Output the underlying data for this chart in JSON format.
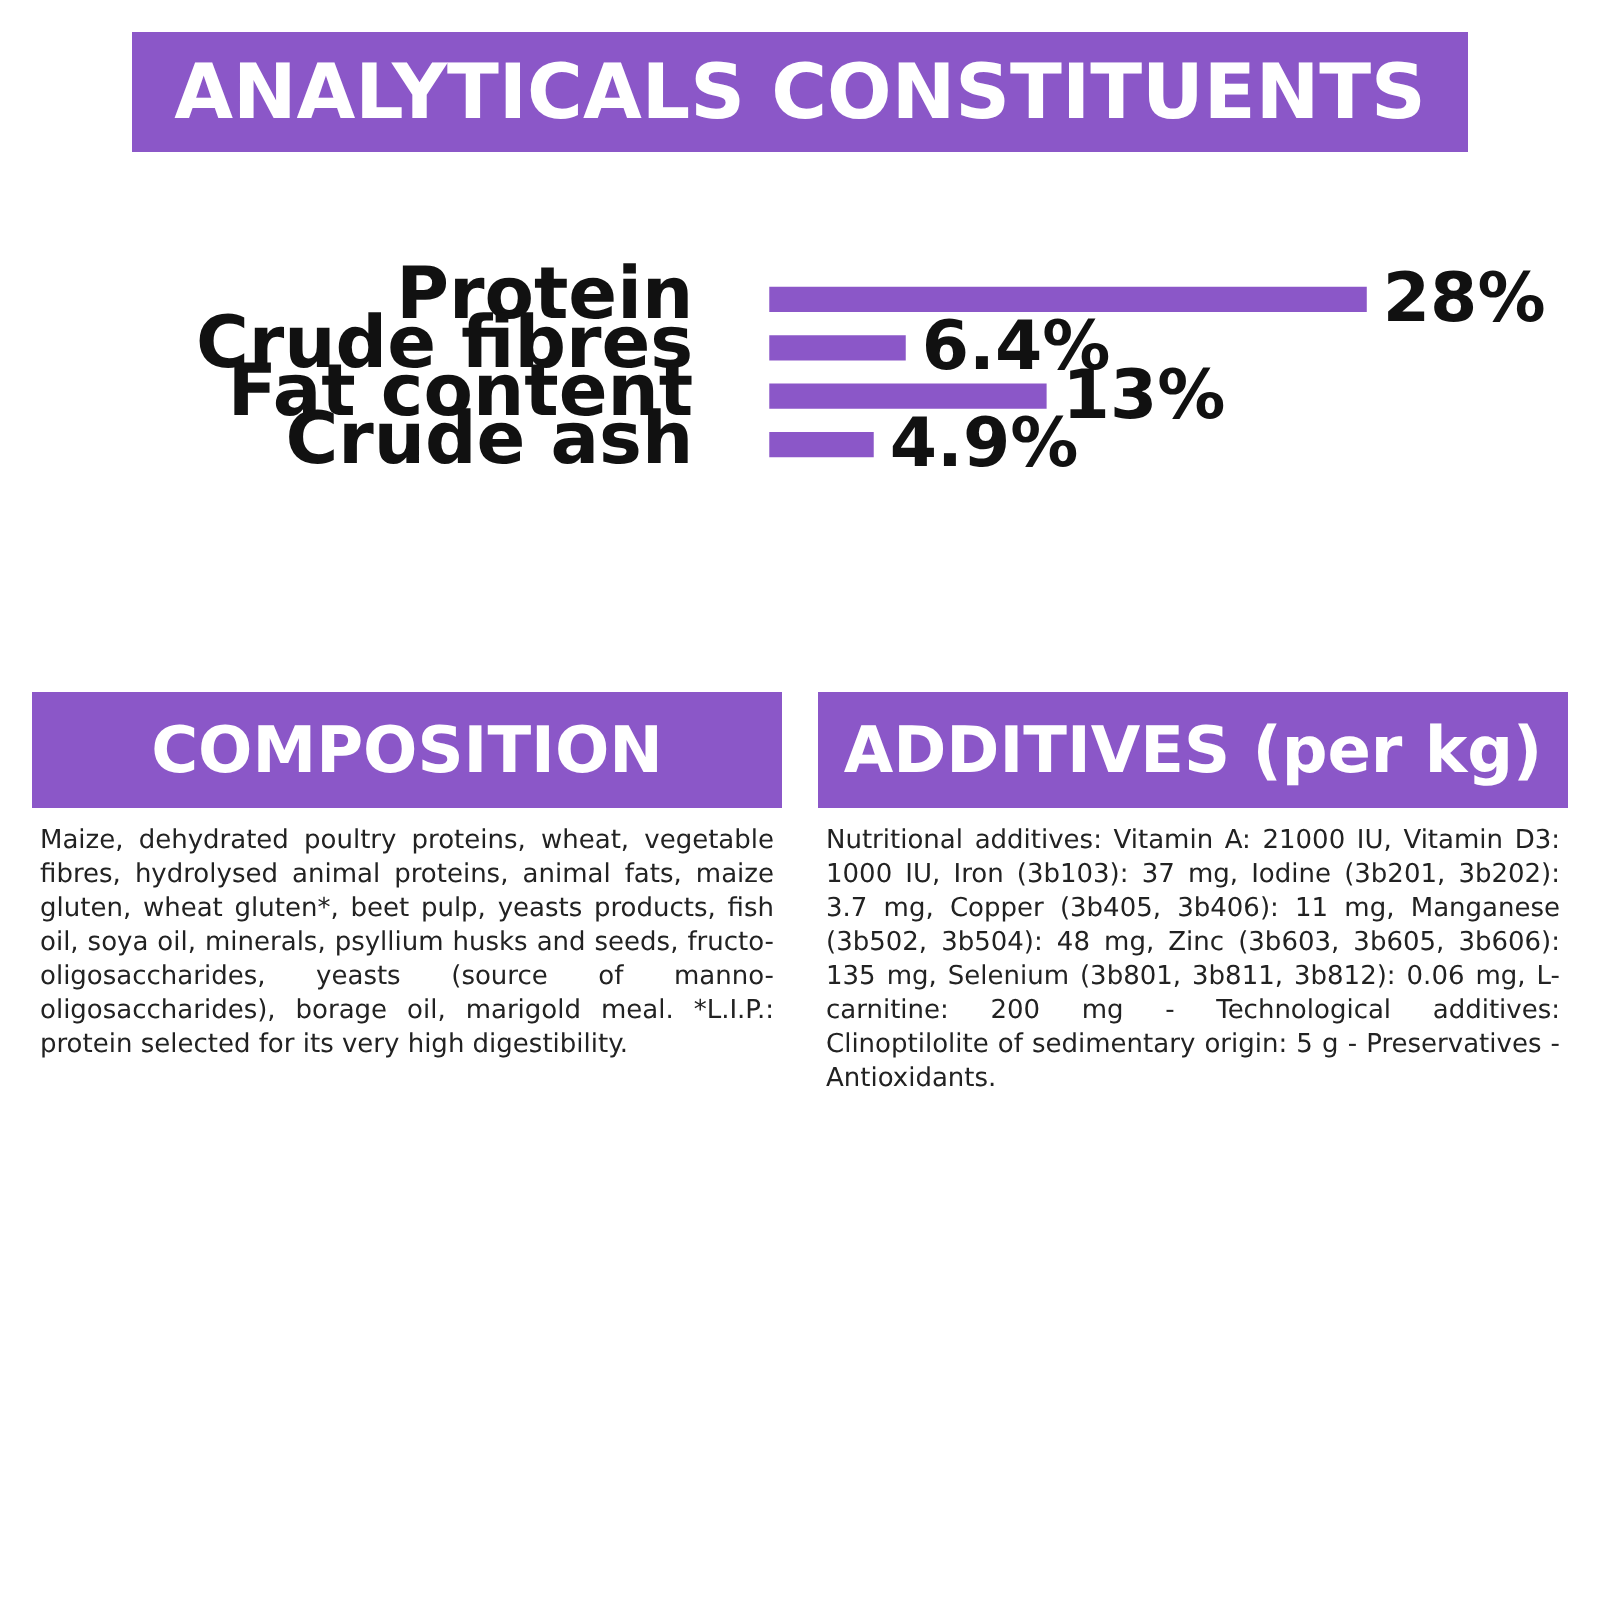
{
  "chart_data": {
    "type": "bar",
    "orientation": "horizontal",
    "title": "ANALYTICALS CONSTITUENTS",
    "categories": [
      "Protein",
      "Crude fibres",
      "Fat content",
      "Crude ash"
    ],
    "values": [
      28,
      6.4,
      13,
      4.9
    ],
    "value_labels": [
      "28%",
      "6.4%",
      "13%",
      "4.9%"
    ],
    "color": "#8b57c8",
    "annotations": [
      "COMPOSITION",
      "Maize, dehydrated poultry proteins, wheat, vegetable fibres, hydrolysed animal proteins, animal fats, maize gluten, wheat gluten*, beet pulp, yeasts products, fish oil, soya oil, minerals, psyllium husks and seeds, fructo-oligosaccharides, yeasts (source of manno-oligosaccharides), borage oil, marigold meal. *L.I.P.: protein selected for its very high digestibility.",
      "ADDITIVES (per kg)",
      "Nutritional additives: Vitamin A: 21000 IU, Vitamin D3: 1000 IU, Iron (3b103): 37 mg, Iodine (3b201, 3b202): 3.7 mg, Copper (3b405, 3b406): 11 mg, Manganese (3b502, 3b504): 48 mg, Zinc (3b603, 3b605, 3b606): 135 mg, Selenium (3b801, 3b811, 3b812): 0.06 mg, L-carnitine: 200 mg - Technological additives: Clinoptilolite of sedimentary origin: 5 g - Preservatives - Antioxidants."
    ]
  }
}
